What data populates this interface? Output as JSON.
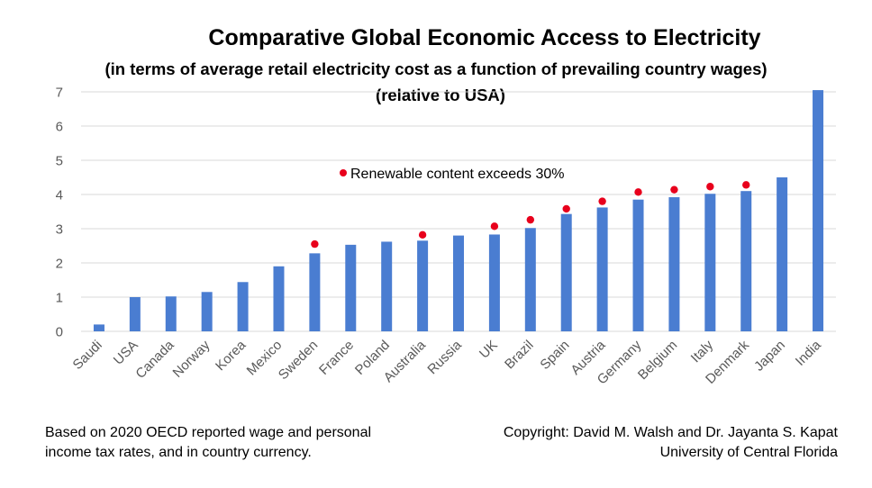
{
  "titles": {
    "main": "Comparative Global Economic Access to Electricity",
    "sub1": "(in terms of average retail electricity cost as a function of prevailing country wages)",
    "sub2": "(relative to USA)"
  },
  "notes": {
    "left_line1": "Based on 2020 OECD reported wage and personal",
    "left_line2": "income tax rates, and in country currency.",
    "right_line1": "Copyright: David M. Walsh and Dr. Jayanta S. Kapat",
    "right_line2": "University of Central Florida"
  },
  "chart_data": {
    "type": "bar",
    "title": "Comparative Global Economic Access to Electricity",
    "subtitle": "(in terms of average retail electricity cost as a function of prevailing country wages) (relative to USA)",
    "categories": [
      "Saudi",
      "USA",
      "Canada",
      "Norway",
      "Korea",
      "Mexico",
      "Sweden",
      "France",
      "Poland",
      "Australia",
      "Russia",
      "UK",
      "Brazil",
      "Spain",
      "Austria",
      "Germany",
      "Belgium",
      "Italy",
      "Denmark",
      "Japan",
      "India"
    ],
    "values": [
      0.2,
      1.0,
      1.02,
      1.15,
      1.44,
      1.9,
      2.28,
      2.53,
      2.62,
      2.65,
      2.8,
      2.83,
      3.02,
      3.43,
      3.62,
      3.85,
      3.92,
      4.02,
      4.1,
      4.5,
      7.05
    ],
    "markers": {
      "label": "Renewable content exceeds 30%",
      "categories": [
        "Sweden",
        "Australia",
        "UK",
        "Brazil",
        "Spain",
        "Austria",
        "Germany",
        "Belgium",
        "Italy",
        "Denmark"
      ],
      "values": [
        2.55,
        2.82,
        3.07,
        3.26,
        3.58,
        3.8,
        4.07,
        4.14,
        4.23,
        4.28
      ],
      "color": "#e8001c"
    },
    "ylim": [
      0,
      7
    ],
    "yticks": [
      "0",
      "1",
      "2",
      "3",
      "4",
      "5",
      "6",
      "7"
    ],
    "xlabel": "",
    "ylabel": "",
    "grid": true,
    "legend_position": "top-center",
    "bar_color": "#4a7dd1",
    "grid_color": "#d9d9d9",
    "tick_color": "#595959"
  }
}
